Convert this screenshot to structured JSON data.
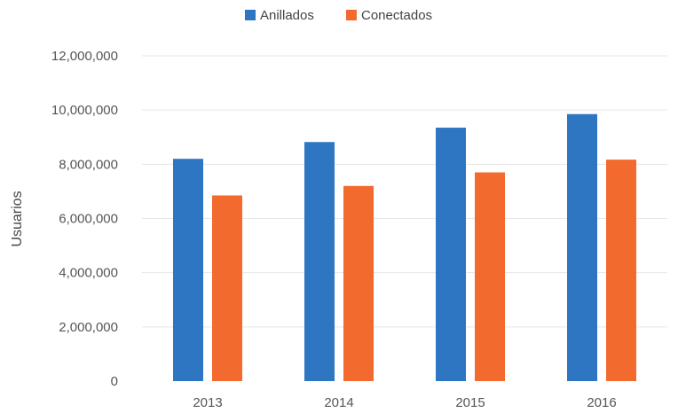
{
  "chart_data": {
    "type": "bar",
    "title": "",
    "xlabel": "",
    "ylabel": "Usuarios",
    "categories": [
      "2013",
      "2014",
      "2015",
      "2016"
    ],
    "series": [
      {
        "name": "Anillados",
        "color": "#2e75c2",
        "values": [
          8200000,
          8820000,
          9350000,
          9850000
        ]
      },
      {
        "name": "Conectados",
        "color": "#f26a2e",
        "values": [
          6850000,
          7200000,
          7700000,
          8170000
        ]
      }
    ],
    "ylim": [
      0,
      12000000
    ],
    "yticks": [
      0,
      2000000,
      4000000,
      6000000,
      8000000,
      10000000,
      12000000
    ],
    "ytick_labels": [
      "0",
      "2,000,000",
      "4,000,000",
      "6,000,000",
      "8,000,000",
      "10,000,000",
      "12,000,000"
    ],
    "grid": true,
    "legend_position": "top-center"
  }
}
